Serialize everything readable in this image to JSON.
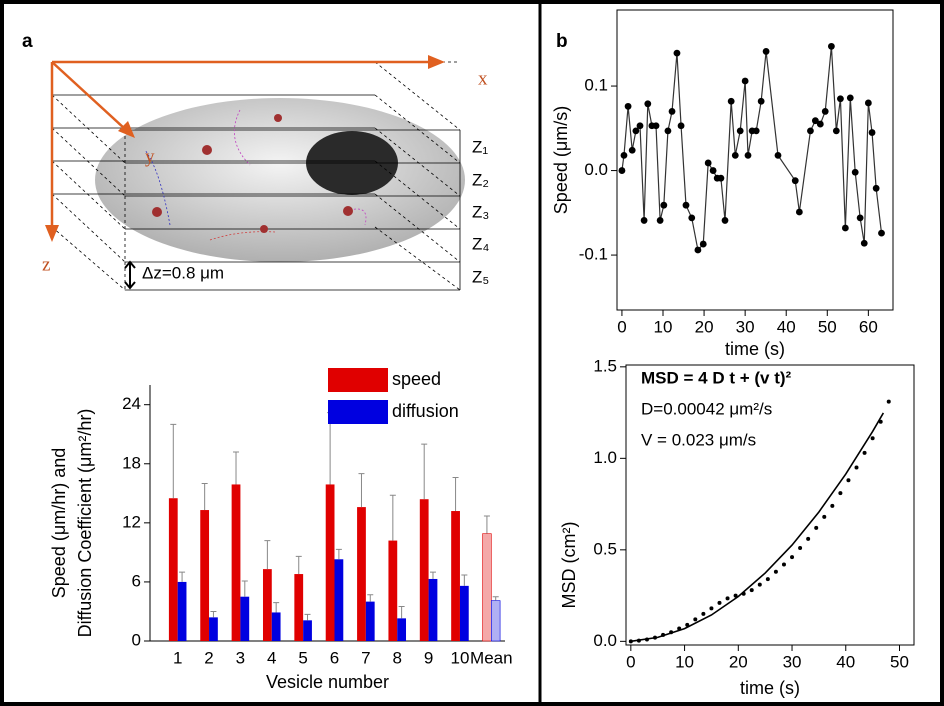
{
  "panels": [
    "a",
    "b"
  ],
  "diagram": {
    "x_axis": "x",
    "y_axis": "y",
    "z_axis": "z",
    "planes": [
      "Z₁",
      "Z₂",
      "Z₃",
      "Z₄",
      "Z₅"
    ],
    "spacing": "Δz=0.8 μm"
  },
  "chart_data": [
    {
      "type": "bar",
      "categories": [
        "1",
        "2",
        "3",
        "4",
        "5",
        "6",
        "7",
        "8",
        "9",
        "10",
        "Mean"
      ],
      "series": [
        {
          "name": "speed",
          "color": "#e00000",
          "colors": [
            "#e00000",
            "#e00000",
            "#e00000",
            "#e00000",
            "#e00000",
            "#e00000",
            "#e00000",
            "#e00000",
            "#e00000",
            "#e00000",
            "#f4a8a8"
          ],
          "values": [
            14.5,
            13.3,
            15.9,
            7.3,
            6.8,
            15.9,
            13.6,
            10.2,
            14.4,
            13.2,
            10.9
          ],
          "errors": [
            7.5,
            2.7,
            3.3,
            2.9,
            1.8,
            7.3,
            3.4,
            4.6,
            5.6,
            3.4,
            1.8
          ]
        },
        {
          "name": "diffusion",
          "color": "#0000e0",
          "colors": [
            "#0000e0",
            "#0000e0",
            "#0000e0",
            "#0000e0",
            "#0000e0",
            "#0000e0",
            "#0000e0",
            "#0000e0",
            "#0000e0",
            "#0000e0",
            "#b0b0f4"
          ],
          "values": [
            6.0,
            2.4,
            4.5,
            2.9,
            2.1,
            8.3,
            4.0,
            2.3,
            6.3,
            5.6,
            4.1
          ],
          "errors": [
            1.0,
            0.6,
            1.6,
            1.0,
            0.6,
            1.0,
            0.7,
            1.2,
            0.7,
            1.1,
            0.4
          ]
        }
      ],
      "ylim": [
        0,
        26
      ],
      "yticks": [
        0,
        6,
        12,
        18,
        24
      ],
      "ylabel": [
        "Speed (μm/hr) and",
        "Diffusion Coefficient (μm²/hr)"
      ],
      "xlabel": "Vesicle number",
      "legend": "top-right"
    },
    {
      "type": "line",
      "color": "#333333",
      "x": [
        0,
        0.5,
        1.5,
        2.5,
        3.4,
        4.4,
        5.4,
        6.3,
        7.3,
        8.3,
        9.3,
        10.2,
        11.2,
        12.2,
        13.4,
        14.4,
        15.6,
        17,
        18.5,
        19.8,
        21,
        22.2,
        23.2,
        24.1,
        25.1,
        26.6,
        27.6,
        28.8,
        30,
        30.7,
        31.7,
        32.7,
        33.9,
        35.1,
        38,
        42.2,
        43.2,
        45.9,
        47.1,
        48.3,
        49.5,
        51,
        52.2,
        53.2,
        54.4,
        55.6,
        56.8,
        58,
        59,
        60,
        60.9,
        61.9,
        63.2
      ],
      "series": [
        {
          "color": "#000000",
          "values": [
            0.0,
            0.018,
            0.076,
            0.024,
            0.047,
            0.053,
            -0.059,
            0.079,
            0.053,
            0.053,
            -0.059,
            -0.041,
            0.047,
            0.07,
            0.139,
            0.053,
            -0.041,
            -0.056,
            -0.094,
            -0.087,
            0.009,
            0.0,
            -0.009,
            -0.009,
            -0.059,
            0.082,
            0.018,
            0.047,
            0.106,
            0.018,
            0.047,
            0.047,
            0.082,
            0.141,
            0.018,
            -0.012,
            -0.049,
            0.047,
            0.059,
            0.055,
            0.07,
            0.147,
            0.047,
            0.085,
            -0.068,
            0.086,
            -0.002,
            -0.056,
            -0.086,
            0.08,
            0.045,
            -0.021,
            -0.074
          ]
        }
      ],
      "xlim": [
        -1.2,
        66
      ],
      "xticks": [
        0,
        10,
        20,
        30,
        40,
        50,
        60
      ],
      "ylim": [
        -0.165,
        0.19
      ],
      "yticks": [
        -0.1,
        {
          "value": 0,
          "label": "0.0"
        },
        0.1
      ],
      "xlabel": "time (s)",
      "ylabel": "Speed (μm/s)"
    },
    {
      "type": "scatter",
      "series": [
        {
          "mode": "markers",
          "color": "#000000",
          "x": [
            0,
            1.5,
            3,
            4.5,
            6,
            7.5,
            9,
            10.5,
            12,
            13.5,
            15,
            16.5,
            18,
            19.5,
            21,
            22.5,
            24,
            25.5,
            27,
            28.5,
            30,
            31.5,
            33,
            34.5,
            36,
            37.5,
            39,
            40.5,
            42,
            43.5,
            45,
            46.5,
            48
          ],
          "values": [
            0.0,
            0.004,
            0.01,
            0.02,
            0.035,
            0.05,
            0.07,
            0.09,
            0.12,
            0.15,
            0.18,
            0.21,
            0.235,
            0.25,
            0.26,
            0.28,
            0.31,
            0.34,
            0.38,
            0.42,
            0.46,
            0.51,
            0.56,
            0.62,
            0.68,
            0.74,
            0.81,
            0.88,
            0.95,
            1.03,
            1.11,
            1.2,
            1.31
          ]
        },
        {
          "mode": "line",
          "color": "#000000",
          "x": [
            0,
            5,
            10,
            15,
            20,
            25,
            30,
            35,
            40,
            45,
            47
          ],
          "values": [
            0.0,
            0.0216,
            0.0697,
            0.144,
            0.245,
            0.373,
            0.526,
            0.707,
            0.914,
            1.147,
            1.248
          ]
        }
      ],
      "xlim": [
        -0.9,
        52.7
      ],
      "xticks": [
        0,
        10,
        20,
        30,
        40,
        50
      ],
      "ylim": [
        -0.02,
        1.51
      ],
      "yticks": [
        {
          "value": 0,
          "label": "0.0"
        },
        0.5,
        {
          "value": 1,
          "label": "1.0"
        },
        {
          "value": 1.5,
          "label": "1.5"
        }
      ],
      "xlabel": "time (s)",
      "ylabel": "MSD (cm²)",
      "annotations": [
        "MSD = 4 D t + (v t)²",
        "D=0.00042 μm²/s",
        "V = 0.023 μm/s"
      ]
    }
  ]
}
